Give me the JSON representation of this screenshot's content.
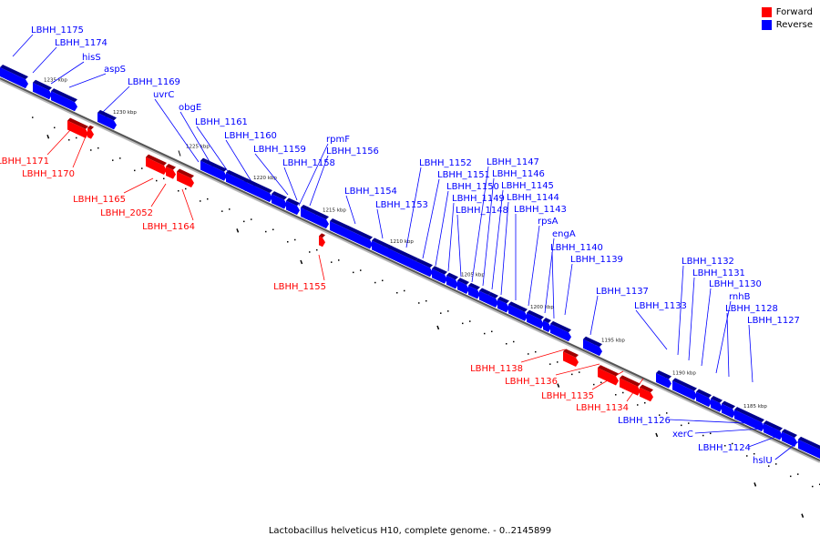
{
  "legend": {
    "forward_label": "Forward",
    "reverse_label": "Reverse",
    "forward_color": "#ff0000",
    "reverse_color": "#0000ff"
  },
  "caption": "Lactobacillus helveticus H10, complete genome. - 0..2145899",
  "scale_labels": [
    "1235 kbp",
    "1230 kbp",
    "1225 kbp",
    "1220 kbp",
    "1215 kbp",
    "1210 kbp",
    "1205 kbp",
    "1200 kbp",
    "1195 kbp",
    "1190 kbp",
    "1185 kbp"
  ],
  "reverse_genes": [
    "LBHH_1175",
    "LBHH_1174",
    "hisS",
    "aspS",
    "LBHH_1169",
    "uvrC",
    "obgE",
    "LBHH_1161",
    "LBHH_1160",
    "LBHH_1159",
    "LBHH_1158",
    "rpmF",
    "LBHH_1156",
    "LBHH_1154",
    "LBHH_1153",
    "LBHH_1152",
    "LBHH_1151",
    "LBHH_1150",
    "LBHH_1149",
    "LBHH_1148",
    "LBHH_1147",
    "LBHH_1146",
    "LBHH_1145",
    "LBHH_1144",
    "LBHH_1143",
    "rpsA",
    "engA",
    "LBHH_1140",
    "LBHH_1139",
    "LBHH_1137",
    "LBHH_1133",
    "LBHH_1132",
    "LBHH_1131",
    "LBHH_1130",
    "rnhB",
    "LBHH_1128",
    "LBHH_1127"
  ],
  "forward_genes": [
    "LBHH_1171",
    "LBHH_1170",
    "LBHH_1165",
    "LBHH_2052",
    "LBHH_1164",
    "LBHH_1155",
    "LBHH_1138",
    "LBHH_1136",
    "LBHH_1135",
    "LBHH_1134"
  ],
  "tail_genes": [
    "LBHH_1126",
    "xerC",
    "LBHH_1124",
    "hslU"
  ]
}
